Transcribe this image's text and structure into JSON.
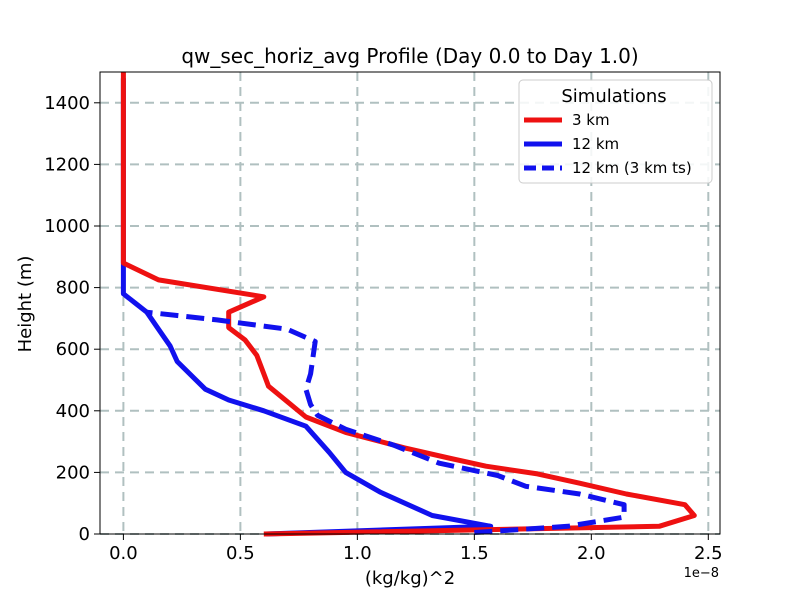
{
  "chart_data": {
    "type": "line",
    "title": "qw_sec_horiz_avg Profile (Day 0.0 to Day 1.0)",
    "xlabel": "(kg/kg)^2",
    "ylabel": "Height (m)",
    "x_offset_label": "1e−8",
    "xlim": [
      -0.1,
      2.55
    ],
    "ylim": [
      0,
      1500
    ],
    "x_ticks": [
      0.0,
      0.5,
      1.0,
      1.5,
      2.0,
      2.5
    ],
    "x_tick_labels": [
      "0.0",
      "0.5",
      "1.0",
      "1.5",
      "2.0",
      "2.5"
    ],
    "y_ticks": [
      0,
      200,
      400,
      600,
      800,
      1000,
      1200,
      1400
    ],
    "y_tick_labels": [
      "0",
      "200",
      "400",
      "600",
      "800",
      "1000",
      "1200",
      "1400"
    ],
    "grid": true,
    "legend": {
      "title": "Simulations",
      "placement": "top-right",
      "entries": [
        "3 km",
        "12 km",
        "12 km (3 km ts)"
      ]
    },
    "series": [
      {
        "name": "3 km",
        "color": "#ee1111",
        "style": "solid",
        "points": [
          [
            0.6,
            0
          ],
          [
            2.29,
            25
          ],
          [
            2.44,
            60
          ],
          [
            2.4,
            95
          ],
          [
            2.15,
            130
          ],
          [
            1.95,
            165
          ],
          [
            1.77,
            195
          ],
          [
            1.55,
            220
          ],
          [
            1.4,
            245
          ],
          [
            1.2,
            280
          ],
          [
            0.95,
            330
          ],
          [
            0.78,
            380
          ],
          [
            0.7,
            430
          ],
          [
            0.62,
            480
          ],
          [
            0.6,
            520
          ],
          [
            0.57,
            580
          ],
          [
            0.52,
            630
          ],
          [
            0.45,
            670
          ],
          [
            0.45,
            720
          ],
          [
            0.6,
            770
          ],
          [
            0.15,
            825
          ],
          [
            0.0,
            880
          ],
          [
            0.0,
            1500
          ]
        ]
      },
      {
        "name": "12 km",
        "color": "#1111ee",
        "style": "solid",
        "points": [
          [
            0.61,
            0
          ],
          [
            1.57,
            25
          ],
          [
            1.32,
            60
          ],
          [
            1.1,
            135
          ],
          [
            0.95,
            200
          ],
          [
            0.88,
            265
          ],
          [
            0.78,
            350
          ],
          [
            0.6,
            400
          ],
          [
            0.45,
            435
          ],
          [
            0.35,
            470
          ],
          [
            0.23,
            560
          ],
          [
            0.2,
            610
          ],
          [
            0.15,
            665
          ],
          [
            0.1,
            720
          ],
          [
            0.05,
            750
          ],
          [
            0.0,
            780
          ],
          [
            0.0,
            1480
          ]
        ]
      },
      {
        "name": "12 km (3 km ts)",
        "color": "#1111ee",
        "style": "dashed",
        "points": [
          [
            1.5,
            5
          ],
          [
            1.9,
            25
          ],
          [
            2.14,
            55
          ],
          [
            2.14,
            95
          ],
          [
            1.95,
            130
          ],
          [
            1.72,
            155
          ],
          [
            1.6,
            190
          ],
          [
            1.35,
            230
          ],
          [
            1.15,
            290
          ],
          [
            0.95,
            340
          ],
          [
            0.83,
            385
          ],
          [
            0.8,
            420
          ],
          [
            0.78,
            470
          ],
          [
            0.8,
            520
          ],
          [
            0.82,
            625
          ],
          [
            0.7,
            665
          ],
          [
            0.4,
            695
          ],
          [
            0.1,
            720
          ]
        ]
      }
    ]
  }
}
